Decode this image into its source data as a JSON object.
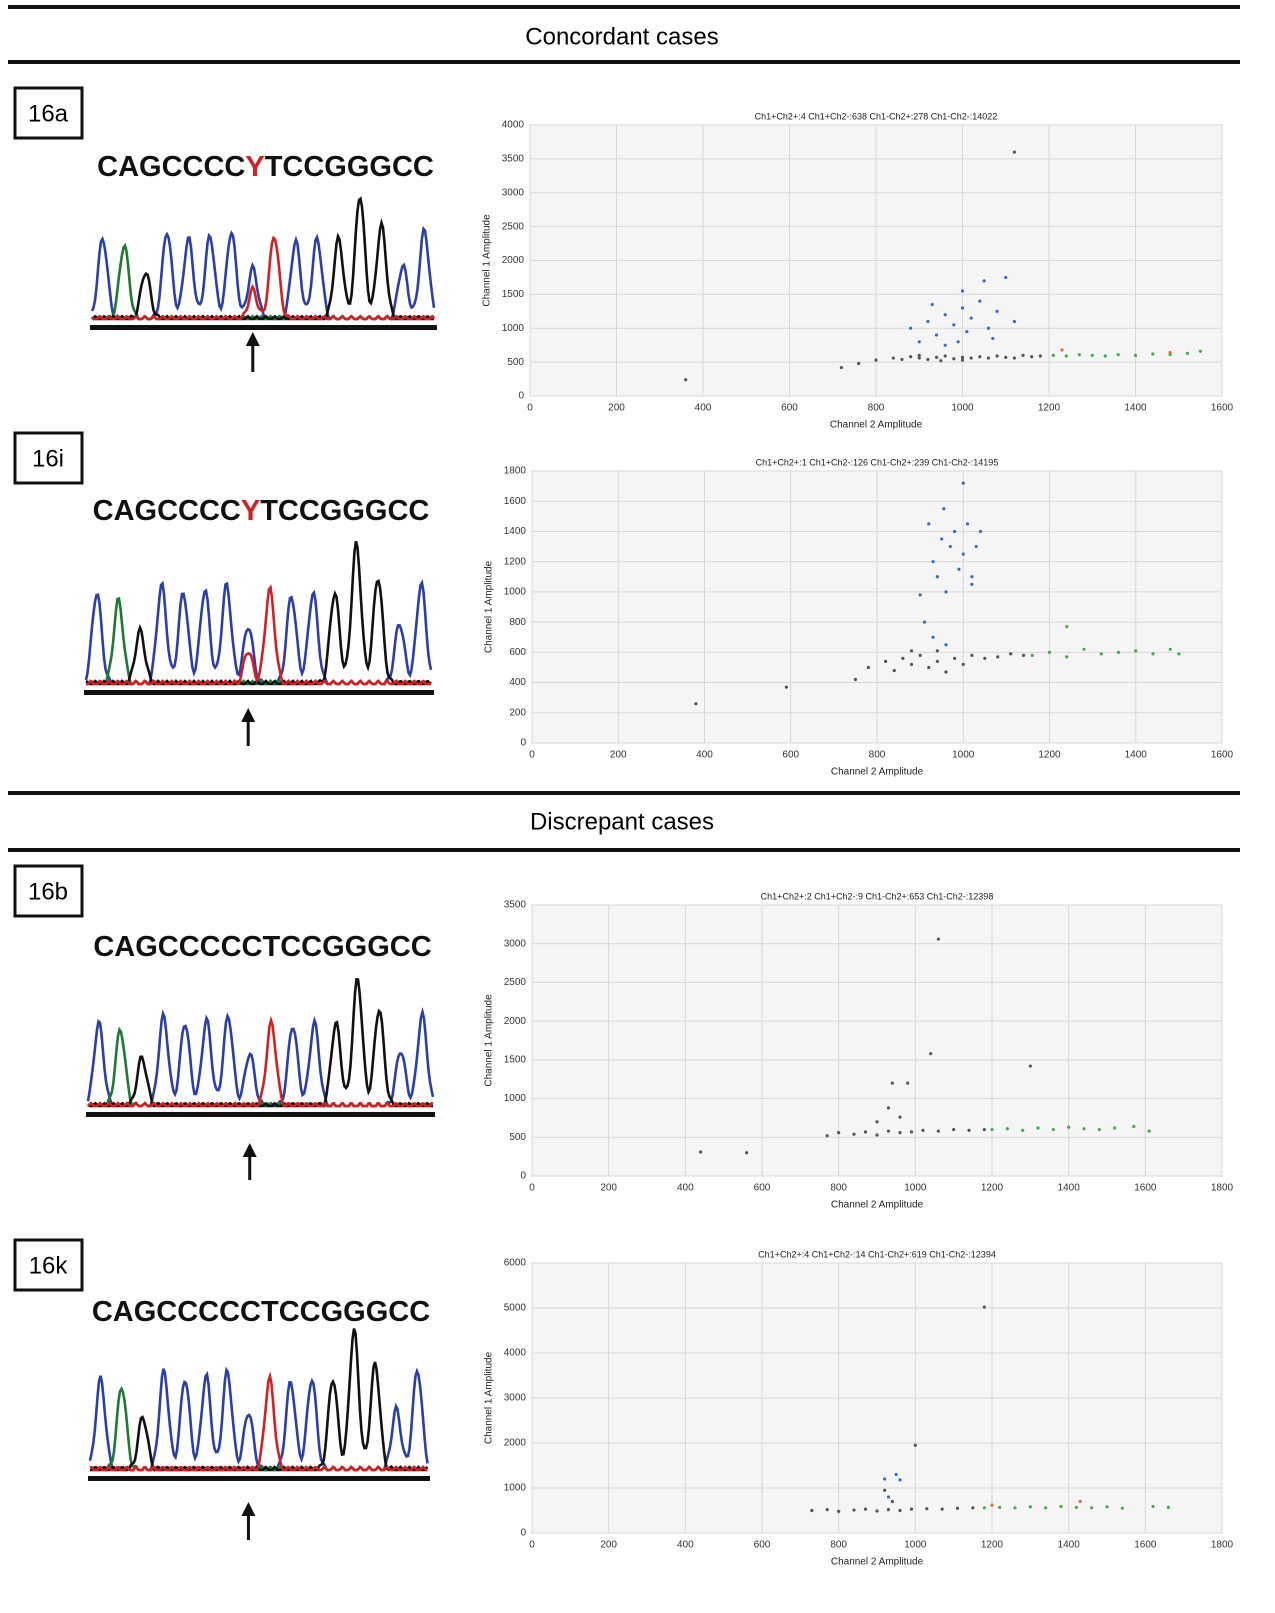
{
  "sections": [
    "Concordant cases",
    "Discrepant cases"
  ],
  "panels": [
    {
      "label": "16a",
      "sequence": [
        "CAGCCCC",
        "Y",
        "TCCGGGCC"
      ]
    },
    {
      "label": "16i",
      "sequence": [
        "CAGCCCC",
        "Y",
        "TCCGGGCC"
      ]
    },
    {
      "label": "16b",
      "sequence": [
        "CAGCCCCCTCCGGGCC"
      ]
    },
    {
      "label": "16k",
      "sequence": [
        "CAGCCCCCTCCGGGCC"
      ]
    }
  ],
  "chart_data": [
    {
      "type": "scatter",
      "title": "Ch1+Ch2+:4 Ch1+Ch2-:638 Ch1-Ch2+:278 Ch1-Ch2-:14022",
      "x_label": "Channel 2 Amplitude",
      "y_label": "Channel 1 Amplitude",
      "xlim": [
        0,
        1600
      ],
      "xticks": [
        0,
        200,
        400,
        600,
        800,
        1000,
        1200,
        1400,
        1600
      ],
      "ylim": [
        0,
        4000
      ],
      "yticks": [
        0,
        500,
        1000,
        1500,
        2000,
        2500,
        3000,
        3500,
        4000
      ],
      "grid": true,
      "series": [
        {
          "color": "#555555",
          "x": [
            360,
            720,
            760,
            800,
            840,
            860,
            880,
            900,
            920,
            940,
            960,
            980,
            1000,
            1020,
            1040,
            1060,
            1080,
            1100,
            1120,
            1140,
            1160,
            1180,
            900,
            950,
            1000,
            1120
          ],
          "y": [
            240,
            420,
            480,
            530,
            560,
            540,
            580,
            560,
            540,
            570,
            590,
            550,
            570,
            560,
            580,
            560,
            590,
            570,
            560,
            600,
            580,
            590,
            600,
            520,
            530,
            3600
          ]
        },
        {
          "color": "#2e6fd1",
          "x": [
            880,
            900,
            920,
            940,
            960,
            980,
            1000,
            1010,
            1020,
            1040,
            1060,
            1080,
            960,
            1000,
            1050,
            1100,
            1120,
            930,
            990,
            1070
          ],
          "y": [
            1000,
            800,
            1100,
            900,
            1200,
            1050,
            1300,
            950,
            1150,
            1400,
            1000,
            1250,
            750,
            1550,
            1700,
            1750,
            1100,
            1350,
            800,
            850
          ]
        },
        {
          "color": "#3cb43c",
          "x": [
            1210,
            1240,
            1270,
            1300,
            1330,
            1360,
            1400,
            1440,
            1480,
            1520,
            1550
          ],
          "y": [
            600,
            590,
            610,
            600,
            590,
            610,
            600,
            620,
            610,
            630,
            660
          ]
        },
        {
          "color": "#e07030",
          "x": [
            1230,
            1480
          ],
          "y": [
            680,
            640
          ]
        }
      ]
    },
    {
      "type": "scatter",
      "title": "Ch1+Ch2+:1 Ch1+Ch2-:126 Ch1-Ch2+:239 Ch1-Ch2-:14195",
      "x_label": "Channel 2 Amplitude",
      "y_label": "Channel 1 Amplitude",
      "xlim": [
        0,
        1600
      ],
      "xticks": [
        0,
        200,
        400,
        600,
        800,
        1000,
        1200,
        1400,
        1600
      ],
      "ylim": [
        0,
        1800
      ],
      "yticks": [
        0,
        200,
        400,
        600,
        800,
        1000,
        1200,
        1400,
        1600,
        1800
      ],
      "grid": true,
      "series": [
        {
          "color": "#555555",
          "x": [
            380,
            590,
            750,
            780,
            820,
            840,
            860,
            880,
            900,
            920,
            940,
            960,
            980,
            1000,
            1020,
            1050,
            1080,
            1110,
            1140,
            880,
            940
          ],
          "y": [
            260,
            370,
            420,
            500,
            540,
            480,
            560,
            520,
            580,
            500,
            540,
            470,
            560,
            520,
            580,
            560,
            570,
            590,
            580,
            610,
            610
          ]
        },
        {
          "color": "#2e6fd1",
          "x": [
            900,
            910,
            920,
            930,
            940,
            950,
            955,
            960,
            970,
            980,
            990,
            1000,
            1010,
            1020,
            1030,
            1040,
            930,
            960,
            1000,
            1020
          ],
          "y": [
            980,
            800,
            1450,
            1200,
            1100,
            1350,
            1550,
            1000,
            1300,
            1400,
            1150,
            1250,
            1450,
            1050,
            1300,
            1400,
            700,
            650,
            1720,
            1100
          ]
        },
        {
          "color": "#3cb43c",
          "x": [
            1160,
            1200,
            1240,
            1280,
            1320,
            1360,
            1400,
            1440,
            1480,
            1500,
            1240
          ],
          "y": [
            580,
            600,
            570,
            620,
            590,
            600,
            610,
            590,
            620,
            590,
            770
          ]
        }
      ]
    },
    {
      "type": "scatter",
      "title": "Ch1+Ch2+:2 Ch1+Ch2-:9 Ch1-Ch2+:653 Ch1-Ch2-:12398",
      "x_label": "Channel 2 Amplitude",
      "y_label": "Channel 1 Amplitude",
      "xlim": [
        0,
        1800
      ],
      "xticks": [
        0,
        200,
        400,
        600,
        800,
        1000,
        1200,
        1400,
        1600,
        1800
      ],
      "ylim": [
        0,
        3500
      ],
      "yticks": [
        0,
        500,
        1000,
        1500,
        2000,
        2500,
        3000,
        3500
      ],
      "grid": true,
      "series": [
        {
          "color": "#555555",
          "x": [
            440,
            560,
            770,
            800,
            840,
            870,
            900,
            930,
            960,
            990,
            1020,
            1060,
            1100,
            1140,
            1180,
            1300,
            1060,
            1040,
            940,
            980,
            930,
            900,
            960
          ],
          "y": [
            310,
            300,
            520,
            560,
            540,
            570,
            530,
            580,
            560,
            570,
            590,
            580,
            600,
            590,
            600,
            1420,
            3060,
            1580,
            1200,
            1200,
            880,
            700,
            760
          ]
        },
        {
          "color": "#3cb43c",
          "x": [
            1200,
            1240,
            1280,
            1320,
            1360,
            1400,
            1440,
            1480,
            1520,
            1570,
            1610
          ],
          "y": [
            600,
            610,
            590,
            620,
            600,
            630,
            610,
            600,
            620,
            640,
            580
          ]
        }
      ]
    },
    {
      "type": "scatter",
      "title": "Ch1+Ch2+:4 Ch1+Ch2-:14 Ch1-Ch2+:619 Ch1-Ch2-:12394",
      "x_label": "Channel 2 Amplitude",
      "y_label": "Channel 1 Amplitude",
      "xlim": [
        0,
        1800
      ],
      "xticks": [
        0,
        200,
        400,
        600,
        800,
        1000,
        1200,
        1400,
        1600,
        1800
      ],
      "ylim": [
        0,
        6000
      ],
      "yticks": [
        0,
        1000,
        2000,
        3000,
        4000,
        5000,
        6000
      ],
      "grid": true,
      "series": [
        {
          "color": "#555555",
          "x": [
            730,
            770,
            800,
            840,
            870,
            900,
            930,
            960,
            990,
            1030,
            1070,
            1110,
            1150,
            1180,
            1000,
            920,
            940
          ],
          "y": [
            500,
            520,
            480,
            510,
            530,
            490,
            520,
            500,
            530,
            540,
            530,
            550,
            560,
            5020,
            1950,
            950,
            700
          ]
        },
        {
          "color": "#2e6fd1",
          "x": [
            920,
            950,
            960,
            930
          ],
          "y": [
            1200,
            1300,
            1180,
            800
          ]
        },
        {
          "color": "#3cb43c",
          "x": [
            1180,
            1220,
            1260,
            1300,
            1340,
            1380,
            1420,
            1460,
            1500,
            1540,
            1620,
            1660
          ],
          "y": [
            560,
            570,
            560,
            580,
            560,
            590,
            570,
            560,
            580,
            550,
            590,
            570
          ]
        },
        {
          "color": "#e07030",
          "x": [
            1430,
            1200
          ],
          "y": [
            700,
            620
          ]
        }
      ]
    }
  ]
}
